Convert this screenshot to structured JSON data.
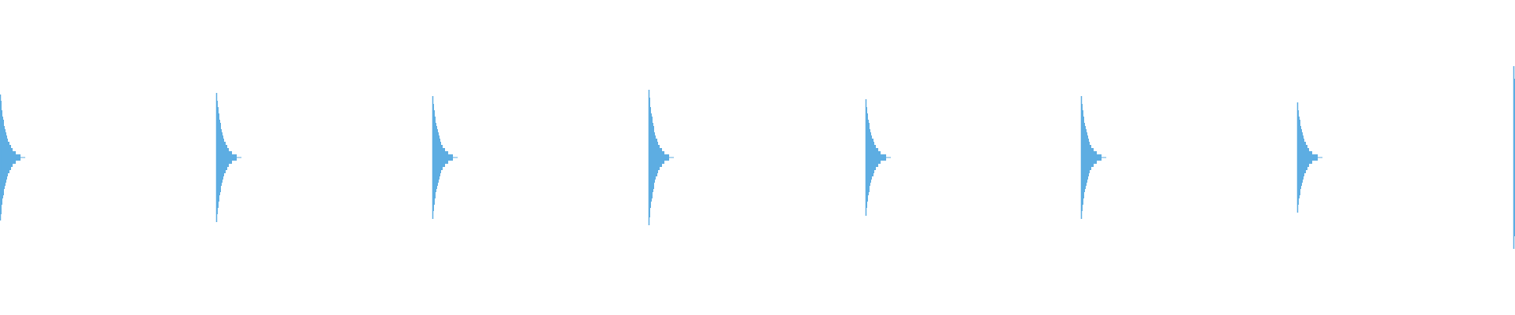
{
  "waveform": {
    "color": "#5dade2",
    "background": "#ffffff",
    "transients": [
      {
        "time_fraction": 0.0,
        "peak_amplitude": 0.4
      },
      {
        "time_fraction": 0.1427,
        "peak_amplitude": 0.41
      },
      {
        "time_fraction": 0.2854,
        "peak_amplitude": 0.39
      },
      {
        "time_fraction": 0.4281,
        "peak_amplitude": 0.43
      },
      {
        "time_fraction": 0.5714,
        "peak_amplitude": 0.37
      },
      {
        "time_fraction": 0.7135,
        "peak_amplitude": 0.39
      },
      {
        "time_fraction": 0.8563,
        "peak_amplitude": 0.35
      },
      {
        "time_fraction": 0.999,
        "peak_amplitude": 0.58
      }
    ]
  }
}
